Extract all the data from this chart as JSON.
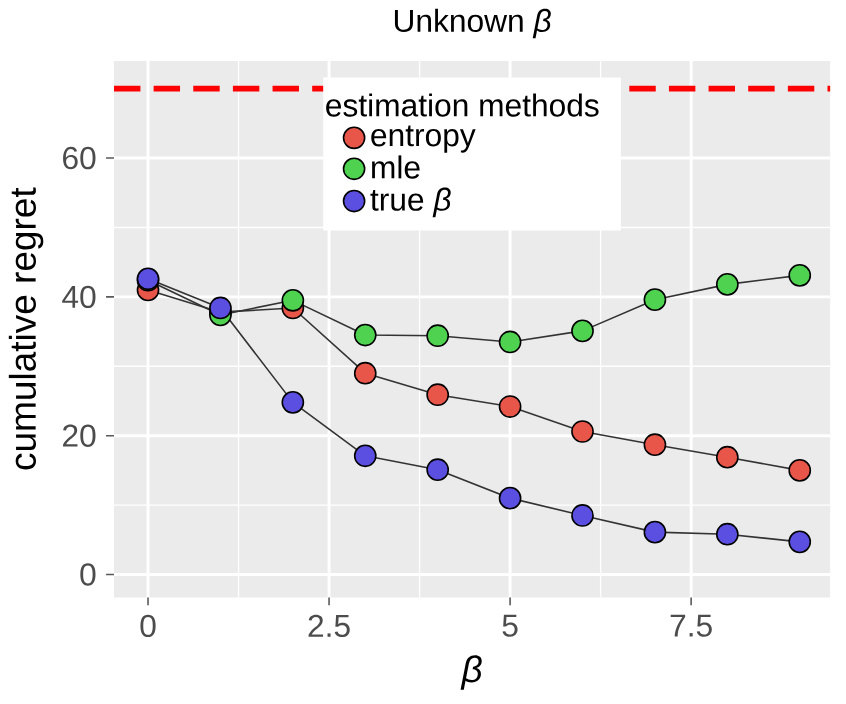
{
  "chart_data": {
    "type": "line",
    "title": "Unknown *β*",
    "xlabel": "β",
    "ylabel": "cumulative regret",
    "legend_title": "estimation methods",
    "x": [
      0,
      1,
      2,
      3,
      4,
      5,
      6,
      7,
      8,
      9
    ],
    "series": [
      {
        "name": "entropy",
        "color": "#e8564a",
        "values": [
          41,
          37.8,
          38.4,
          29.0,
          25.9,
          24.2,
          20.6,
          18.7,
          16.9,
          15.0
        ]
      },
      {
        "name": "mle",
        "color": "#4fd24f",
        "values": [
          42.4,
          37.4,
          39.5,
          34.5,
          34.4,
          33.5,
          35.1,
          39.6,
          41.8,
          43.1
        ]
      },
      {
        "name": "true *β*",
        "color": "#5a4fe0",
        "values": [
          42.6,
          38.4,
          24.8,
          17.1,
          15.1,
          11.0,
          8.5,
          6.1,
          5.8,
          4.7
        ]
      }
    ],
    "xlim": [
      -0.47,
      9.42
    ],
    "ylim": [
      -3.3,
      74
    ],
    "xticks": [
      0,
      2.5,
      5,
      7.5
    ],
    "yticks": [
      0,
      20,
      40,
      60
    ],
    "ref_lines": [
      {
        "axis": "y",
        "value": 70,
        "color": "#ff0000",
        "line_style": "dashed"
      }
    ],
    "grid": true,
    "legend": "top",
    "marker": "circle",
    "line_style": "solid"
  }
}
